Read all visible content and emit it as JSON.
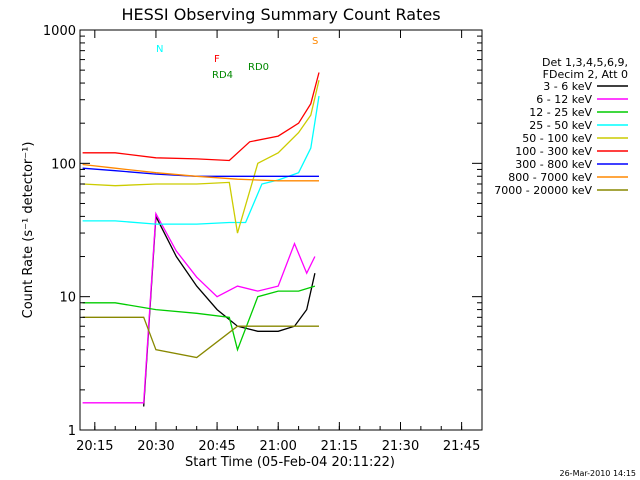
{
  "chart_data": {
    "type": "line",
    "title": "HESSI Observing Summary Count Rates",
    "xlabel": "Start Time (05-Feb-04 20:11:22)",
    "ylabel": "Count Rate (s⁻¹ detector⁻¹)",
    "yscale": "log",
    "ylim": [
      1,
      1000
    ],
    "xlim": [
      "20:11:22",
      "21:50:00"
    ],
    "x_ticks": [
      "20:15",
      "20:30",
      "20:45",
      "21:00",
      "21:15",
      "21:30",
      "21:45"
    ],
    "y_ticks": [
      "1",
      "10",
      "100",
      "1000"
    ],
    "footer_date": "26-Mar-2010 14:15",
    "legend": {
      "placement": "right",
      "header": [
        "Det 1,3,4,5,6,9,",
        "FDecim 2, Att 0"
      ]
    },
    "series": [
      {
        "name": "3 - 6 keV",
        "color": "#000000",
        "x": [
          "20:27",
          "20:30",
          "20:35",
          "20:40",
          "20:45",
          "20:50",
          "20:55",
          "21:00",
          "21:04",
          "21:07",
          "21:09"
        ],
        "y": [
          1.5,
          40,
          20,
          12,
          8,
          6,
          5.5,
          5.5,
          6,
          8,
          15
        ]
      },
      {
        "name": "6 - 12 keV",
        "color": "#ff00ff",
        "x": [
          "20:12",
          "20:20",
          "20:27",
          "20:30",
          "20:35",
          "20:40",
          "20:45",
          "20:50",
          "20:55",
          "21:00",
          "21:04",
          "21:07",
          "21:09"
        ],
        "y": [
          1.6,
          1.6,
          1.6,
          42,
          22,
          14,
          10,
          12,
          11,
          12,
          25,
          15,
          20
        ]
      },
      {
        "name": "12 - 25 keV",
        "color": "#00cc00",
        "x": [
          "20:12",
          "20:20",
          "20:30",
          "20:40",
          "20:48",
          "20:50",
          "20:55",
          "21:00",
          "21:05",
          "21:09"
        ],
        "y": [
          9,
          9,
          8,
          7.5,
          7,
          4,
          10,
          11,
          11,
          12
        ]
      },
      {
        "name": "25 - 50 keV",
        "color": "#00ffff",
        "x": [
          "20:12",
          "20:20",
          "20:30",
          "20:40",
          "20:48",
          "20:52",
          "20:56",
          "21:00",
          "21:05",
          "21:08",
          "21:10"
        ],
        "y": [
          37,
          37,
          35,
          35,
          36,
          36,
          70,
          75,
          85,
          130,
          320
        ]
      },
      {
        "name": "50 - 100 keV",
        "color": "#cccc00",
        "x": [
          "20:12",
          "20:20",
          "20:30",
          "20:40",
          "20:48",
          "20:50",
          "20:55",
          "21:00",
          "21:05",
          "21:08",
          "21:10"
        ],
        "y": [
          70,
          68,
          70,
          70,
          72,
          30,
          100,
          120,
          170,
          230,
          420
        ]
      },
      {
        "name": "100 - 300 keV",
        "color": "#ff0000",
        "x": [
          "20:12",
          "20:20",
          "20:30",
          "20:40",
          "20:48",
          "20:53",
          "21:00",
          "21:05",
          "21:08",
          "21:10"
        ],
        "y": [
          120,
          120,
          110,
          108,
          105,
          145,
          160,
          200,
          280,
          480
        ]
      },
      {
        "name": "300 - 800 keV",
        "color": "#0000ff",
        "x": [
          "20:12",
          "20:20",
          "20:30",
          "20:40",
          "20:50",
          "21:00",
          "21:05",
          "21:10"
        ],
        "y": [
          92,
          88,
          83,
          80,
          80,
          80,
          80,
          80
        ]
      },
      {
        "name": "800 - 7000 keV",
        "color": "#ff8800",
        "x": [
          "20:12",
          "20:20",
          "20:30",
          "20:40",
          "20:50",
          "21:00",
          "21:05",
          "21:10"
        ],
        "y": [
          98,
          92,
          85,
          80,
          76,
          74,
          74,
          74
        ]
      },
      {
        "name": "7000 - 20000 keV",
        "color": "#888800",
        "x": [
          "20:12",
          "20:20",
          "20:27",
          "20:30",
          "20:40",
          "20:50",
          "21:00",
          "21:05",
          "21:10"
        ],
        "y": [
          7,
          7,
          7,
          4,
          3.5,
          6,
          6,
          6,
          6
        ]
      }
    ],
    "flags": [
      {
        "label": "N",
        "color": "#00ffff"
      },
      {
        "label": "S",
        "color": "#ff8800"
      },
      {
        "label": "F",
        "color": "#ff0000"
      },
      {
        "label": "RD0",
        "color": "#008800"
      },
      {
        "label": "RD4",
        "color": "#008800"
      }
    ]
  }
}
